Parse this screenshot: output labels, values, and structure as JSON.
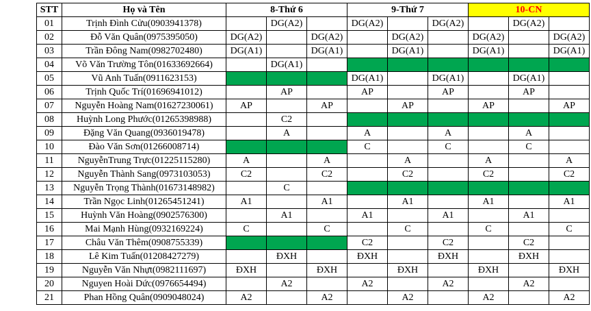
{
  "headers": {
    "stt": "STT",
    "name": "Họ và Tên",
    "days": [
      "8-Thứ 6",
      "9-Thứ 7",
      "10-CN"
    ]
  },
  "colors": {
    "highlight_bg": "#ffff00",
    "highlight_text": "#ff0000",
    "green_fill": "#00a650"
  },
  "rows": [
    {
      "stt": "01",
      "name": "Trịnh Đình Cửu(0903941378)",
      "cells": [
        "",
        "DG(A2)",
        "",
        "DG(A2)",
        "",
        "DG(A2)",
        "",
        "DG(A2)",
        ""
      ],
      "green": []
    },
    {
      "stt": "02",
      "name": "Đỗ Văn Quân(0975395050)",
      "cells": [
        "DG(A2)",
        "",
        "DG(A2)",
        "",
        "DG(A2)",
        "",
        "DG(A2)",
        "",
        "DG(A2)"
      ],
      "green": []
    },
    {
      "stt": "03",
      "name": "Trần Đông Nam(0982702480)",
      "cells": [
        "DG(A1)",
        "",
        "DG(A1)",
        "",
        "DG(A1)",
        "",
        "DG(A1)",
        "",
        "DG(A1)"
      ],
      "green": []
    },
    {
      "stt": "04",
      "name": "Võ Văn Trường Tôn(01633692664)",
      "cells": [
        "",
        "DG(A1)",
        "",
        "",
        "",
        "",
        "",
        "",
        ""
      ],
      "green": [
        3,
        4,
        5,
        6,
        7,
        8
      ]
    },
    {
      "stt": "05",
      "name": "Vũ Anh Tuấn(0911623153)",
      "cells": [
        "",
        "",
        "",
        "DG(A1)",
        "",
        "DG(A1)",
        "",
        "DG(A1)",
        ""
      ],
      "green": [
        0,
        1,
        2
      ]
    },
    {
      "stt": "06",
      "name": "Trịnh Quốc Trí(01696941012)",
      "cells": [
        "",
        "AP",
        "",
        "AP",
        "",
        "AP",
        "",
        "AP",
        ""
      ],
      "green": []
    },
    {
      "stt": "07",
      "name": "Nguyễn Hoàng Nam(01627230061)",
      "cells": [
        "AP",
        "",
        "AP",
        "",
        "AP",
        "",
        "AP",
        "",
        "AP"
      ],
      "green": []
    },
    {
      "stt": "08",
      "name": "Huỳnh Long Phước(01265398988)",
      "cells": [
        "",
        "C2",
        "",
        "",
        "",
        "",
        "",
        "",
        ""
      ],
      "green": [
        3,
        4,
        5,
        6,
        7,
        8
      ]
    },
    {
      "stt": "09",
      "name": "Đặng Văn Quang(0936019478)",
      "cells": [
        "",
        "A",
        "",
        "A",
        "",
        "A",
        "",
        "A",
        ""
      ],
      "green": []
    },
    {
      "stt": "10",
      "name": "Đào Văn Sơn(01266008714)",
      "cells": [
        "",
        "",
        "",
        "C",
        "",
        "C",
        "",
        "C",
        ""
      ],
      "green": [
        0,
        1,
        2
      ]
    },
    {
      "stt": "11",
      "name": "NguyễnTrung Trực(01225115280)",
      "cells": [
        "A",
        "",
        "A",
        "",
        "A",
        "",
        "A",
        "",
        "A"
      ],
      "green": []
    },
    {
      "stt": "12",
      "name": "Nguyễn Thành Sang(0973103053)",
      "cells": [
        "C2",
        "",
        "C2",
        "",
        "C2",
        "",
        "C2",
        "",
        "C2"
      ],
      "green": []
    },
    {
      "stt": "13",
      "name": "Nguyễn Trọng Thành(01673148982)",
      "cells": [
        "",
        "C",
        "",
        "",
        "",
        "",
        "",
        "",
        ""
      ],
      "green": [
        3,
        4,
        5,
        6,
        7,
        8
      ]
    },
    {
      "stt": "14",
      "name": "Trần Ngọc Linh(01265451241)",
      "cells": [
        "A1",
        "",
        "A1",
        "",
        "A1",
        "",
        "A1",
        "",
        "A1"
      ],
      "green": []
    },
    {
      "stt": "15",
      "name": "Huỳnh Văn Hoàng(0902576300)",
      "cells": [
        "",
        "A1",
        "",
        "A1",
        "",
        "A1",
        "",
        "A1",
        ""
      ],
      "green": []
    },
    {
      "stt": "16",
      "name": "Mai Mạnh Hùng(0932169224)",
      "cells": [
        "C",
        "",
        "C",
        "",
        "C",
        "",
        "C",
        "",
        "C"
      ],
      "green": []
    },
    {
      "stt": "17",
      "name": "Châu Văn Thêm(0908755339)",
      "cells": [
        "",
        "",
        "",
        "C2",
        "",
        "C2",
        "",
        "C2",
        ""
      ],
      "green": [
        0,
        1,
        2
      ]
    },
    {
      "stt": "18",
      "name": "Lê Kim Tuấn(01208427279)",
      "cells": [
        "",
        "ĐXH",
        "",
        "ĐXH",
        "",
        "ĐXH",
        "",
        "ĐXH",
        ""
      ],
      "green": []
    },
    {
      "stt": "19",
      "name": "Nguyễn Văn Nhựt(0982111697)",
      "cells": [
        "ĐXH",
        "",
        "ĐXH",
        "",
        "ĐXH",
        "",
        "ĐXH",
        "",
        "ĐXH"
      ],
      "green": []
    },
    {
      "stt": "20",
      "name": "Nguyen Hoài Dức(0976654494)",
      "cells": [
        "",
        "A2",
        "",
        "A2",
        "",
        "A2",
        "",
        "A2",
        ""
      ],
      "green": []
    },
    {
      "stt": "21",
      "name": "Phan Hồng Quân(0909048024)",
      "cells": [
        "A2",
        "",
        "A2",
        "",
        "A2",
        "",
        "A2",
        "",
        "A2"
      ],
      "green": []
    }
  ]
}
